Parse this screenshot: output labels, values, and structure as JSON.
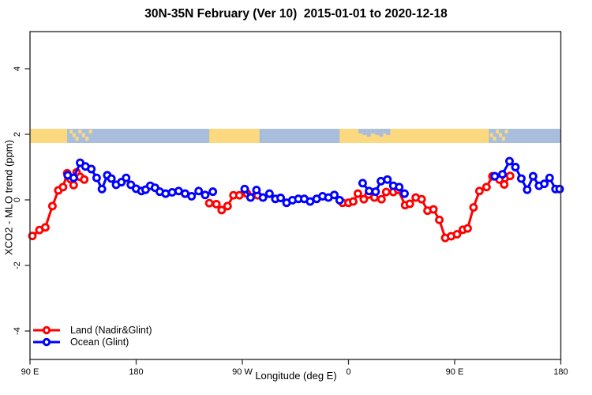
{
  "chart_data": {
    "type": "line",
    "title": "30N-35N February (Ver 10)  2015-01-01 to 2020-12-18",
    "xlabel": "Longitude (deg E)",
    "ylabel": "XCO2 - MLO trend (ppm)",
    "xlim": [
      90,
      540
    ],
    "ylim": [
      -4.9,
      5.1
    ],
    "grid": false,
    "x_ticks": [
      {
        "lon": 90,
        "label": "90 E"
      },
      {
        "lon": 180,
        "label": "180"
      },
      {
        "lon": 270,
        "label": "90 W"
      },
      {
        "lon": 360,
        "label": "0"
      },
      {
        "lon": 450,
        "label": "90 E"
      },
      {
        "lon": 540,
        "label": "180"
      }
    ],
    "y_ticks": [
      {
        "value": 4,
        "label": "4"
      },
      {
        "value": 2,
        "label": "2"
      },
      {
        "value": 0,
        "label": "0"
      },
      {
        "value": -2,
        "label": "-2"
      },
      {
        "value": -4,
        "label": "-4"
      }
    ],
    "legend": {
      "position": "bottom-left",
      "items": [
        {
          "name": "Land (Nadir&Glint)",
          "color": "#ff0000"
        },
        {
          "name": "Ocean (Glint)",
          "color": "#0000ff"
        }
      ]
    },
    "series": [
      {
        "name": "Land (Nadir&Glint)",
        "color": "#ff0000",
        "marker": "open-circle",
        "segments": [
          {
            "lon": [
              92,
              98,
              103,
              109,
              114,
              118,
              121.5,
              124.5,
              127,
              129.5,
              132.5,
              136
            ],
            "val": [
              -1.1,
              -0.92,
              -0.84,
              -0.19,
              0.29,
              0.39,
              0.81,
              0.63,
              0.45,
              0.84,
              0.7,
              0.62
            ]
          },
          {
            "lon": [
              242,
              248,
              252.5,
              257.5,
              262.5,
              267.5,
              274,
              283
            ],
            "val": [
              -0.1,
              -0.13,
              -0.31,
              -0.19,
              0.14,
              0.14,
              0.19,
              0.14
            ]
          },
          {
            "lon": [
              355,
              360,
              364,
              368,
              373,
              377,
              382,
              388,
              392,
              398,
              402,
              408,
              412,
              417,
              422,
              427,
              432,
              437,
              442,
              447,
              452,
              457,
              461,
              466,
              471,
              477,
              482,
              488,
              492,
              497
            ],
            "val": [
              -0.09,
              -0.09,
              -0.05,
              0.19,
              0.02,
              0.16,
              0.07,
              0.02,
              0.24,
              0.24,
              0.31,
              -0.16,
              -0.12,
              0.07,
              0.02,
              -0.33,
              -0.29,
              -0.61,
              -1.16,
              -1.11,
              -1.05,
              -0.91,
              -0.87,
              -0.23,
              0.27,
              0.39,
              0.72,
              0.62,
              0.47,
              0.73
            ]
          }
        ]
      },
      {
        "name": "Ocean (Glint)",
        "color": "#0000ff",
        "marker": "open-circle",
        "segments": [
          {
            "lon": [
              122,
              127,
              132.5,
              137,
              142,
              146.5,
              151,
              155.5,
              159,
              163,
              167.5,
              171.5,
              175.5,
              180,
              184.5,
              188,
              192,
              196,
              200,
              205,
              210.5,
              216,
              221.5,
              227,
              233,
              238.5,
              245
            ],
            "val": [
              0.75,
              0.67,
              1.13,
              1.02,
              0.94,
              0.67,
              0.33,
              0.75,
              0.65,
              0.46,
              0.54,
              0.67,
              0.46,
              0.34,
              0.27,
              0.31,
              0.43,
              0.37,
              0.25,
              0.19,
              0.23,
              0.27,
              0.19,
              0.11,
              0.27,
              0.15,
              0.25
            ]
          },
          {
            "lon": [
              272,
              277,
              282,
              287.5,
              293,
              298,
              302.5,
              307.5,
              312.5,
              317.5,
              322.5,
              327.5,
              333,
              338,
              343,
              348,
              352.5
            ],
            "val": [
              0.33,
              0.07,
              0.3,
              0.07,
              0.19,
              0.03,
              0.06,
              -0.09,
              -0.01,
              0.03,
              0.03,
              -0.05,
              0.03,
              0.11,
              0.07,
              0.15,
              -0.01
            ]
          },
          {
            "lon": [
              372,
              377.5,
              383,
              387.5,
              393,
              398,
              403,
              407.5
            ],
            "val": [
              0.51,
              0.27,
              0.25,
              0.57,
              0.62,
              0.43,
              0.39,
              0.19
            ]
          },
          {
            "lon": [
              484,
              490.5,
              496.5,
              501.5,
              506.5,
              511.5,
              516.5,
              521.5,
              526,
              530.5,
              535.5,
              539
            ],
            "val": [
              0.72,
              0.78,
              1.18,
              1.0,
              0.65,
              0.31,
              0.72,
              0.43,
              0.49,
              0.67,
              0.33,
              0.33
            ]
          }
        ]
      }
    ],
    "map_band": {
      "description": "land/ocean strip of the 30N-35N latitude band",
      "ocean_color": "#a9bedc",
      "land_color": "#fcd97e",
      "extent_lon": [
        90,
        540
      ],
      "land_segments": [
        [
          90,
          121.5
        ],
        [
          242,
          284.5
        ],
        [
          352.5,
          479
        ]
      ],
      "island_specks": [
        123.5,
        126,
        128.5,
        131,
        134,
        137,
        140,
        480,
        482.5,
        485,
        487.5,
        490,
        492.5
      ],
      "ocean_specks": [
        368.5,
        372,
        375.5,
        379,
        382.5,
        386,
        389.5,
        392
      ]
    }
  }
}
